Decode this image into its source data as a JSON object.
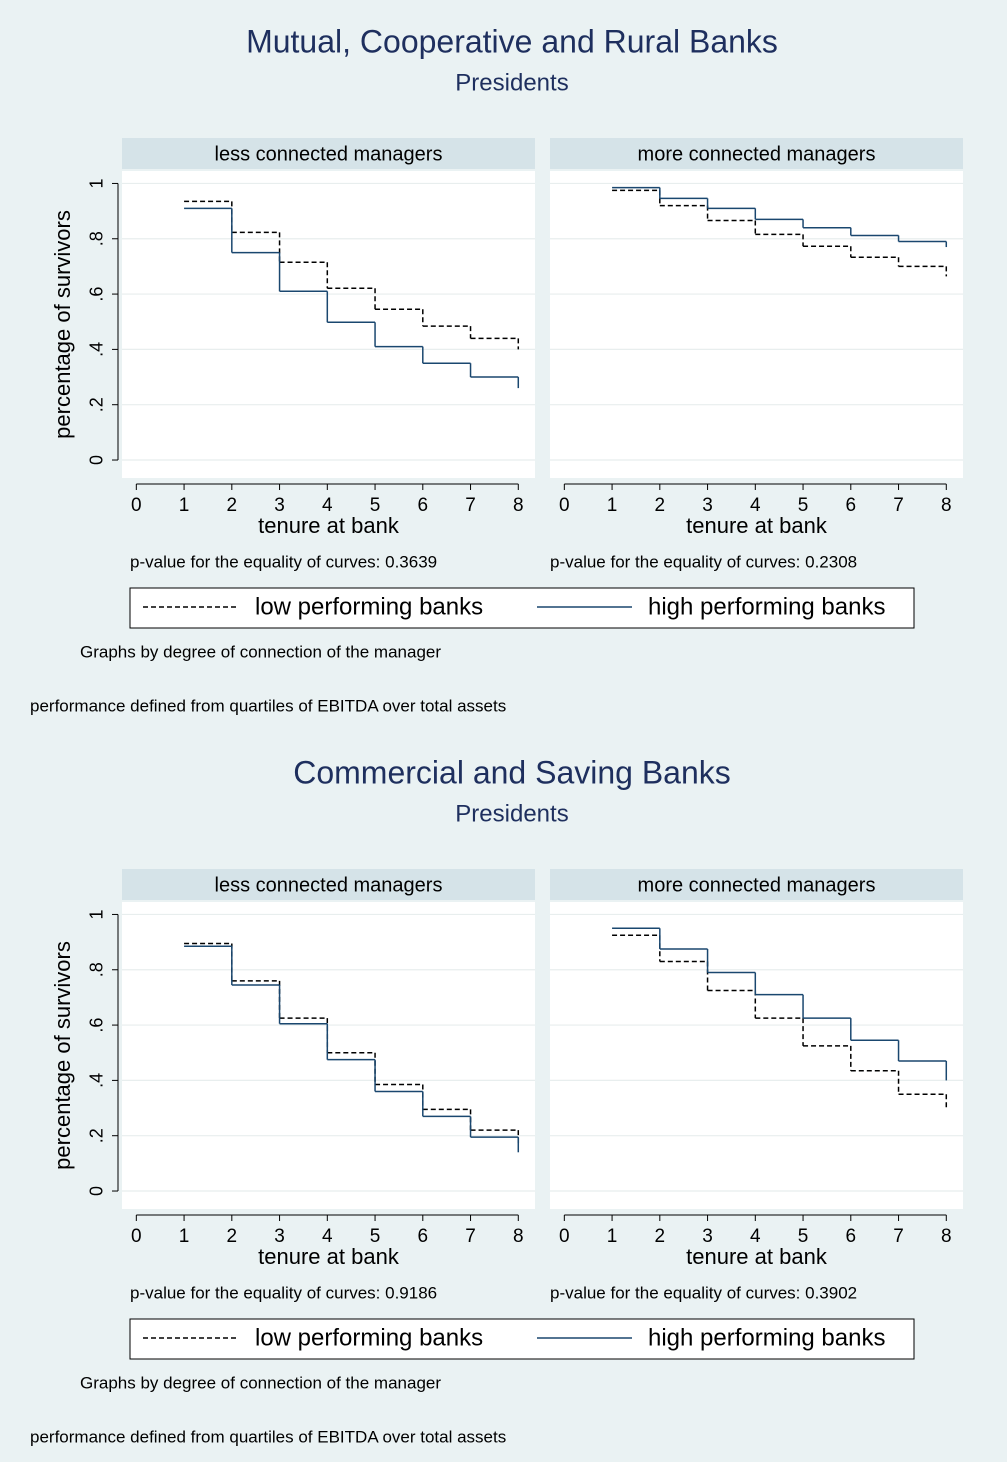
{
  "figures": [
    {
      "title": "Mutual, Cooperative and Rural Banks",
      "subtitle": "Presidents",
      "note": "Graphs by degree of connection of the manager",
      "footnote": "performance defined from quartiles of EBITDA over total assets"
    },
    {
      "title": "Commercial and Saving Banks",
      "subtitle": "Presidents",
      "note": "Graphs by degree of connection of the manager",
      "footnote": "performance defined from quartiles of EBITDA over total assets"
    }
  ],
  "chart_data": [
    {
      "type": "line",
      "steps": true,
      "title": "less connected managers",
      "xlabel": "tenure at bank",
      "ylabel": "percentage of survivors",
      "note": "p-value for the equality of curves: 0.3639",
      "xlim": [
        -0.3,
        8.35
      ],
      "xticks": [
        0,
        1,
        2,
        3,
        4,
        5,
        6,
        7,
        8
      ],
      "ylim": [
        -0.065,
        1.045
      ],
      "yticks": [
        0,
        {
          "value": 0.2,
          "label": ".2"
        },
        {
          "value": 0.4,
          "label": ".4"
        },
        {
          "value": 0.6,
          "label": ".6"
        },
        {
          "value": 0.8,
          "label": ".8"
        },
        1
      ],
      "ytick_labels": true,
      "grid": true,
      "x": [
        1,
        2,
        3,
        4,
        5,
        6,
        7,
        8
      ],
      "series": [
        {
          "name": "low performing banks",
          "color": "#000000",
          "dash": "dashed",
          "values": [
            0.935,
            0.823,
            0.715,
            0.621,
            0.545,
            0.484,
            0.44,
            0.4
          ]
        },
        {
          "name": "high performing banks",
          "color": "#1a476f",
          "dash": "solid",
          "values": [
            0.91,
            0.75,
            0.61,
            0.498,
            0.41,
            0.35,
            0.3,
            0.26
          ]
        }
      ]
    },
    {
      "type": "line",
      "steps": true,
      "title": "more connected managers",
      "xlabel": "tenure at bank",
      "note": "p-value for the equality of curves: 0.2308",
      "xlim": [
        -0.3,
        8.35
      ],
      "xticks": [
        0,
        1,
        2,
        3,
        4,
        5,
        6,
        7,
        8
      ],
      "ylim": [
        -0.065,
        1.045
      ],
      "yticks": [
        0,
        0.2,
        0.4,
        0.6,
        0.8,
        1
      ],
      "ytick_labels": false,
      "grid": true,
      "x": [
        1,
        2,
        3,
        4,
        5,
        6,
        7,
        8
      ],
      "series": [
        {
          "name": "low performing banks",
          "color": "#000000",
          "dash": "dashed",
          "values": [
            0.975,
            0.92,
            0.866,
            0.816,
            0.773,
            0.733,
            0.7,
            0.664
          ]
        },
        {
          "name": "high performing banks",
          "color": "#1a476f",
          "dash": "solid",
          "values": [
            0.985,
            0.946,
            0.91,
            0.87,
            0.84,
            0.812,
            0.79,
            0.77
          ]
        }
      ]
    },
    {
      "type": "line",
      "steps": true,
      "title": "less connected managers",
      "xlabel": "tenure at bank",
      "ylabel": "percentage of survivors",
      "note": "p-value for the equality of curves: 0.9186",
      "xlim": [
        -0.3,
        8.35
      ],
      "xticks": [
        0,
        1,
        2,
        3,
        4,
        5,
        6,
        7,
        8
      ],
      "ylim": [
        -0.065,
        1.045
      ],
      "yticks": [
        0,
        {
          "value": 0.2,
          "label": ".2"
        },
        {
          "value": 0.4,
          "label": ".4"
        },
        {
          "value": 0.6,
          "label": ".6"
        },
        {
          "value": 0.8,
          "label": ".8"
        },
        1
      ],
      "ytick_labels": true,
      "grid": true,
      "x": [
        1,
        2,
        3,
        4,
        5,
        6,
        7,
        8
      ],
      "series": [
        {
          "name": "low performing banks",
          "color": "#000000",
          "dash": "dashed",
          "values": [
            0.895,
            0.76,
            0.625,
            0.5,
            0.385,
            0.295,
            0.22,
            0.17
          ]
        },
        {
          "name": "high performing banks",
          "color": "#1a476f",
          "dash": "solid",
          "values": [
            0.885,
            0.745,
            0.605,
            0.475,
            0.36,
            0.27,
            0.195,
            0.14
          ]
        }
      ]
    },
    {
      "type": "line",
      "steps": true,
      "title": "more connected managers",
      "xlabel": "tenure at bank",
      "note": "p-value for the equality of curves: 0.3902",
      "xlim": [
        -0.3,
        8.35
      ],
      "xticks": [
        0,
        1,
        2,
        3,
        4,
        5,
        6,
        7,
        8
      ],
      "ylim": [
        -0.065,
        1.045
      ],
      "yticks": [
        0,
        0.2,
        0.4,
        0.6,
        0.8,
        1
      ],
      "ytick_labels": false,
      "grid": true,
      "x": [
        1,
        2,
        3,
        4,
        5,
        6,
        7,
        8
      ],
      "series": [
        {
          "name": "low performing banks",
          "color": "#000000",
          "dash": "dashed",
          "values": [
            0.925,
            0.83,
            0.725,
            0.625,
            0.525,
            0.435,
            0.35,
            0.3
          ]
        },
        {
          "name": "high performing banks",
          "color": "#1a476f",
          "dash": "solid",
          "values": [
            0.95,
            0.875,
            0.79,
            0.71,
            0.625,
            0.545,
            0.47,
            0.4
          ]
        }
      ]
    }
  ]
}
